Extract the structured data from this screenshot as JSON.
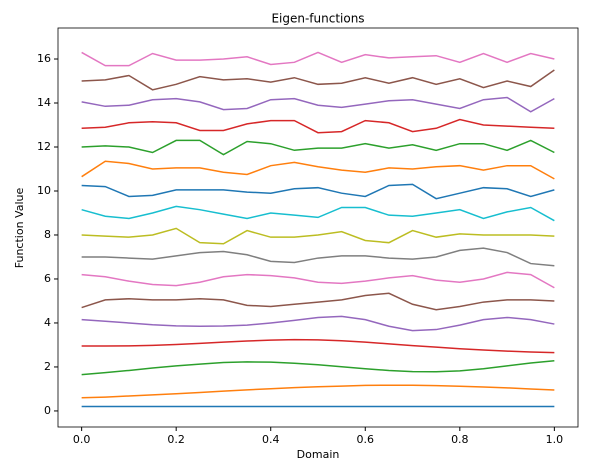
{
  "chart_data": {
    "type": "line",
    "title": "Eigen-functions",
    "xlabel": "Domain",
    "ylabel": "Function Value",
    "x": [
      0,
      0.05,
      0.1,
      0.15,
      0.2,
      0.25,
      0.3,
      0.35,
      0.4,
      0.45,
      0.5,
      0.55,
      0.6,
      0.65,
      0.7,
      0.75,
      0.8,
      0.85,
      0.9,
      0.95,
      1
    ],
    "xlim": [
      -0.05,
      1.05
    ],
    "xticks": [
      {
        "value": 0,
        "label": "0.0"
      },
      {
        "value": 0.2,
        "label": "0.2"
      },
      {
        "value": 0.4,
        "label": "0.4"
      },
      {
        "value": 0.6,
        "label": "0.6"
      },
      {
        "value": 0.8,
        "label": "0.8"
      },
      {
        "value": 1,
        "label": "1.0"
      }
    ],
    "ylim": [
      -0.73,
      17.41
    ],
    "yticks": [
      0,
      2,
      4,
      6,
      8,
      10,
      12,
      14,
      16
    ],
    "grid": false,
    "series": [
      {
        "color": "#1f77b4",
        "values": [
          0.2,
          0.2,
          0.2,
          0.2,
          0.2,
          0.2,
          0.2,
          0.2,
          0.2,
          0.2,
          0.2,
          0.2,
          0.2,
          0.2,
          0.2,
          0.2,
          0.2,
          0.2,
          0.2,
          0.2,
          0.2
        ]
      },
      {
        "color": "#ff7f0e",
        "values": [
          0.6,
          0.63,
          0.68,
          0.73,
          0.78,
          0.84,
          0.9,
          0.96,
          1.01,
          1.06,
          1.1,
          1.13,
          1.16,
          1.17,
          1.17,
          1.15,
          1.12,
          1.09,
          1.05,
          1.0,
          0.95
        ]
      },
      {
        "color": "#2ca02c",
        "values": [
          1.65,
          1.74,
          1.84,
          1.95,
          2.05,
          2.13,
          2.2,
          2.23,
          2.22,
          2.17,
          2.1,
          2.01,
          1.92,
          1.84,
          1.79,
          1.78,
          1.82,
          1.92,
          2.05,
          2.18,
          2.28
        ]
      },
      {
        "color": "#d62728",
        "values": [
          2.95,
          2.95,
          2.96,
          2.98,
          3.02,
          3.07,
          3.13,
          3.18,
          3.22,
          3.24,
          3.23,
          3.19,
          3.13,
          3.05,
          2.97,
          2.9,
          2.83,
          2.77,
          2.72,
          2.68,
          2.65
        ]
      },
      {
        "color": "#9467bd",
        "values": [
          4.15,
          4.08,
          4.0,
          3.92,
          3.87,
          3.85,
          3.86,
          3.9,
          4.0,
          4.12,
          4.25,
          4.3,
          4.15,
          3.85,
          3.65,
          3.7,
          3.9,
          4.15,
          4.25,
          4.15,
          3.95
        ]
      },
      {
        "color": "#8c564b",
        "values": [
          4.7,
          5.05,
          5.1,
          5.05,
          5.05,
          5.1,
          5.05,
          4.8,
          4.75,
          4.85,
          4.95,
          5.05,
          5.25,
          5.35,
          4.85,
          4.6,
          4.75,
          4.95,
          5.05,
          5.05,
          5.0
        ]
      },
      {
        "color": "#e377c2",
        "values": [
          6.2,
          6.1,
          5.9,
          5.75,
          5.7,
          5.85,
          6.1,
          6.2,
          6.15,
          6.05,
          5.85,
          5.8,
          5.9,
          6.05,
          6.15,
          5.95,
          5.85,
          6.0,
          6.3,
          6.2,
          5.6
        ]
      },
      {
        "color": "#7f7f7f",
        "values": [
          7.0,
          7.0,
          6.95,
          6.9,
          7.05,
          7.2,
          7.25,
          7.1,
          6.8,
          6.75,
          6.95,
          7.05,
          7.05,
          6.95,
          6.9,
          7.0,
          7.3,
          7.4,
          7.2,
          6.7,
          6.6
        ]
      },
      {
        "color": "#bcbd22",
        "values": [
          8.0,
          7.95,
          7.9,
          8.0,
          8.3,
          7.65,
          7.6,
          8.2,
          7.9,
          7.9,
          8.0,
          8.15,
          7.75,
          7.65,
          8.2,
          7.9,
          8.05,
          8.0,
          8.0,
          8.0,
          7.95
        ]
      },
      {
        "color": "#17becf",
        "values": [
          9.15,
          8.85,
          8.75,
          9.0,
          9.3,
          9.15,
          8.95,
          8.75,
          9.0,
          8.9,
          8.8,
          9.25,
          9.25,
          8.9,
          8.85,
          9.0,
          9.15,
          8.75,
          9.05,
          9.25,
          8.65
        ]
      },
      {
        "color": "#1f77b4",
        "values": [
          10.25,
          10.2,
          9.75,
          9.8,
          10.05,
          10.05,
          10.05,
          9.95,
          9.9,
          10.1,
          10.15,
          9.9,
          9.75,
          10.25,
          10.3,
          9.65,
          9.9,
          10.15,
          10.1,
          9.75,
          10.05
        ]
      },
      {
        "color": "#ff7f0e",
        "values": [
          10.65,
          11.35,
          11.25,
          11.0,
          11.05,
          11.05,
          10.85,
          10.75,
          11.15,
          11.3,
          11.1,
          10.95,
          10.85,
          11.05,
          11.0,
          11.1,
          11.15,
          10.95,
          11.15,
          11.15,
          10.55
        ]
      },
      {
        "color": "#2ca02c",
        "values": [
          12.0,
          12.05,
          12.0,
          11.75,
          12.3,
          12.3,
          11.65,
          12.25,
          12.15,
          11.85,
          11.95,
          11.95,
          12.15,
          11.95,
          12.1,
          11.85,
          12.15,
          12.15,
          11.85,
          12.3,
          11.75
        ]
      },
      {
        "color": "#d62728",
        "values": [
          12.85,
          12.9,
          13.1,
          13.15,
          13.1,
          12.75,
          12.75,
          13.05,
          13.2,
          13.2,
          12.65,
          12.7,
          13.2,
          13.1,
          12.7,
          12.85,
          13.25,
          13.0,
          12.95,
          12.9,
          12.85
        ]
      },
      {
        "color": "#9467bd",
        "values": [
          14.05,
          13.85,
          13.9,
          14.15,
          14.2,
          14.05,
          13.7,
          13.75,
          14.15,
          14.2,
          13.9,
          13.8,
          13.95,
          14.1,
          14.15,
          13.95,
          13.75,
          14.15,
          14.25,
          13.6,
          14.2
        ]
      },
      {
        "color": "#8c564b",
        "values": [
          15.0,
          15.05,
          15.25,
          14.6,
          14.85,
          15.2,
          15.05,
          15.1,
          14.95,
          15.15,
          14.85,
          14.9,
          15.15,
          14.9,
          15.15,
          14.85,
          15.1,
          14.7,
          15.0,
          14.75,
          15.5
        ]
      },
      {
        "color": "#e377c2",
        "values": [
          16.3,
          15.7,
          15.7,
          16.25,
          15.95,
          15.95,
          16.0,
          16.1,
          15.75,
          15.85,
          16.3,
          15.85,
          16.2,
          16.05,
          16.1,
          16.15,
          15.85,
          16.25,
          15.85,
          16.25,
          16.0
        ]
      }
    ]
  }
}
